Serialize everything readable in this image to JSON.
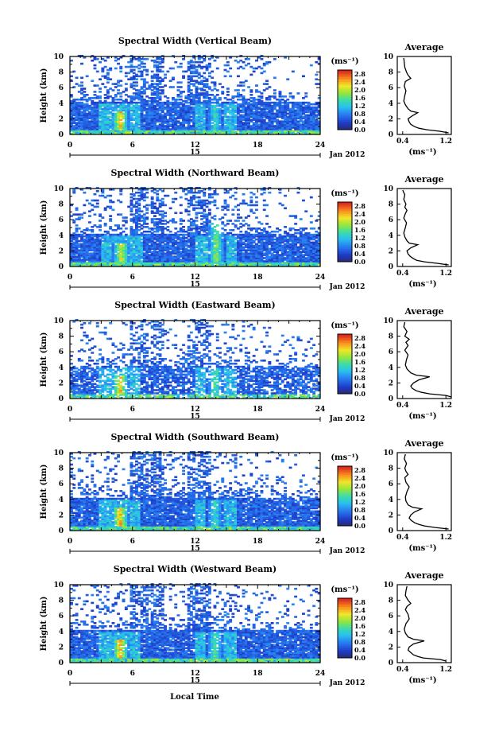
{
  "figure": {
    "xlabel": "Local Time",
    "ylabel": "Height (km)",
    "colorbar_unit": "(ms⁻¹)",
    "avg_title": "Average",
    "avg_xlabel": "(ms⁻¹)",
    "date_label": "Jan 2012",
    "day_label": "15"
  },
  "chart_data": [
    {
      "type": "heatmap",
      "title": "Spectral Width (Vertical Beam)",
      "xlabel": "Local Time",
      "ylabel": "Height (km)",
      "x_ticks": [
        "0",
        "6",
        "12",
        "18",
        "24"
      ],
      "xlim": [
        0,
        24
      ],
      "y_ticks": [
        "0",
        "2",
        "4",
        "6",
        "8",
        "10"
      ],
      "ylim": [
        0,
        10
      ],
      "colorbar": {
        "label": "(ms⁻¹)",
        "ticks": [
          "0.0",
          "0.4",
          "0.8",
          "1.2",
          "1.6",
          "2.0",
          "2.4",
          "2.8"
        ],
        "range": [
          0,
          3.0
        ]
      },
      "features": [
        {
          "time": 4.7,
          "height_range": [
            0.5,
            3.0
          ],
          "value": 2.6
        },
        {
          "time": 13.8,
          "height_range": [
            0.5,
            4.0
          ],
          "value": 1.6
        }
      ],
      "profile": {
        "title": "Average",
        "xlabel": "(ms⁻¹)",
        "x_ticks": [
          "0.4",
          "1.2"
        ],
        "xlim": [
          0.3,
          1.3
        ],
        "y_ticks": [
          "0",
          "2",
          "4",
          "6",
          "8",
          "10"
        ],
        "ylim": [
          0,
          10
        ],
        "heights": [
          0.2,
          0.4,
          0.6,
          0.8,
          1.0,
          1.3,
          1.6,
          2.0,
          2.4,
          2.8,
          3.0,
          3.3,
          3.8,
          4.3,
          5.0,
          5.6,
          6.2,
          6.8,
          7.2,
          7.6,
          8.0,
          8.6,
          9.2,
          9.8
        ],
        "values": [
          1.25,
          1.1,
          0.85,
          0.7,
          0.62,
          0.55,
          0.52,
          0.5,
          0.58,
          0.68,
          0.55,
          0.5,
          0.45,
          0.42,
          0.44,
          0.46,
          0.43,
          0.45,
          0.55,
          0.5,
          0.47,
          0.44,
          0.43,
          0.42
        ]
      }
    },
    {
      "type": "heatmap",
      "title": "Spectral Width (Northward Beam)",
      "xlabel": "Local Time",
      "ylabel": "Height (km)",
      "x_ticks": [
        "0",
        "6",
        "12",
        "18",
        "24"
      ],
      "xlim": [
        0,
        24
      ],
      "y_ticks": [
        "0",
        "2",
        "4",
        "6",
        "8",
        "10"
      ],
      "ylim": [
        0,
        10
      ],
      "colorbar": {
        "label": "(ms⁻¹)",
        "ticks": [
          "0.0",
          "0.4",
          "0.8",
          "1.2",
          "1.6",
          "2.0",
          "2.4",
          "2.8"
        ],
        "range": [
          0,
          3.0
        ]
      },
      "features": [
        {
          "time": 4.8,
          "height_range": [
            0.5,
            3.0
          ],
          "value": 2.4
        },
        {
          "time": 13.9,
          "height_range": [
            0.5,
            5.5
          ],
          "value": 2.0
        }
      ],
      "profile": {
        "title": "Average",
        "xlabel": "(ms⁻¹)",
        "x_ticks": [
          "0.4",
          "1.2"
        ],
        "xlim": [
          0.3,
          1.3
        ],
        "y_ticks": [
          "0",
          "2",
          "4",
          "6",
          "8",
          "10"
        ],
        "ylim": [
          0,
          10
        ],
        "heights": [
          0.2,
          0.4,
          0.6,
          0.8,
          1.0,
          1.3,
          1.6,
          2.0,
          2.4,
          2.8,
          3.0,
          3.3,
          3.8,
          4.3,
          5.0,
          5.6,
          6.2,
          6.8,
          7.2,
          7.6,
          8.0,
          8.6,
          9.2,
          9.8
        ],
        "values": [
          1.25,
          1.05,
          0.8,
          0.66,
          0.6,
          0.54,
          0.5,
          0.48,
          0.55,
          0.68,
          0.52,
          0.48,
          0.44,
          0.42,
          0.45,
          0.47,
          0.42,
          0.45,
          0.48,
          0.44,
          0.46,
          0.42,
          0.44,
          0.4
        ]
      }
    },
    {
      "type": "heatmap",
      "title": "Spectral Width (Eastward Beam)",
      "xlabel": "Local Time",
      "ylabel": "Height (km)",
      "x_ticks": [
        "0",
        "6",
        "12",
        "18",
        "24"
      ],
      "xlim": [
        0,
        24
      ],
      "y_ticks": [
        "0",
        "2",
        "4",
        "6",
        "8",
        "10"
      ],
      "ylim": [
        0,
        10
      ],
      "colorbar": {
        "label": "(ms⁻¹)",
        "ticks": [
          "0.0",
          "0.4",
          "0.8",
          "1.2",
          "1.6",
          "2.0",
          "2.4",
          "2.8"
        ],
        "range": [
          0,
          3.0
        ]
      },
      "features": [
        {
          "time": 4.7,
          "height_range": [
            0.5,
            3.0
          ],
          "value": 2.6
        },
        {
          "time": 13.8,
          "height_range": [
            0.5,
            4.0
          ],
          "value": 1.8
        }
      ],
      "profile": {
        "title": "Average",
        "xlabel": "(ms⁻¹)",
        "x_ticks": [
          "0.4",
          "1.2"
        ],
        "xlim": [
          0.3,
          1.3
        ],
        "y_ticks": [
          "0",
          "2",
          "4",
          "6",
          "8",
          "10"
        ],
        "ylim": [
          0,
          10
        ],
        "heights": [
          0.2,
          0.4,
          0.6,
          0.8,
          1.0,
          1.3,
          1.6,
          2.0,
          2.4,
          2.8,
          3.0,
          3.3,
          3.8,
          4.3,
          5.0,
          5.6,
          6.2,
          6.8,
          7.2,
          7.6,
          8.0,
          8.6,
          9.2,
          9.8
        ],
        "values": [
          1.3,
          1.2,
          0.9,
          0.75,
          0.65,
          0.58,
          0.55,
          0.6,
          0.7,
          0.9,
          0.65,
          0.55,
          0.48,
          0.45,
          0.47,
          0.5,
          0.44,
          0.5,
          0.46,
          0.52,
          0.44,
          0.48,
          0.42,
          0.44
        ]
      }
    },
    {
      "type": "heatmap",
      "title": "Spectral Width (Southward Beam)",
      "xlabel": "Local Time",
      "ylabel": "Height (km)",
      "x_ticks": [
        "0",
        "6",
        "12",
        "18",
        "24"
      ],
      "xlim": [
        0,
        24
      ],
      "y_ticks": [
        "0",
        "2",
        "4",
        "6",
        "8",
        "10"
      ],
      "ylim": [
        0,
        10
      ],
      "colorbar": {
        "label": "(ms⁻¹)",
        "ticks": [
          "0.0",
          "0.4",
          "0.8",
          "1.2",
          "1.6",
          "2.0",
          "2.4",
          "2.8"
        ],
        "range": [
          0,
          3.0
        ]
      },
      "features": [
        {
          "time": 4.7,
          "height_range": [
            0.5,
            3.0
          ],
          "value": 2.7
        },
        {
          "time": 13.8,
          "height_range": [
            0.5,
            4.0
          ],
          "value": 1.6
        }
      ],
      "profile": {
        "title": "Average",
        "xlabel": "(ms⁻¹)",
        "x_ticks": [
          "0.4",
          "1.2"
        ],
        "xlim": [
          0.3,
          1.3
        ],
        "y_ticks": [
          "0",
          "2",
          "4",
          "6",
          "8",
          "10"
        ],
        "ylim": [
          0,
          10
        ],
        "heights": [
          0.2,
          0.4,
          0.6,
          0.8,
          1.0,
          1.3,
          1.6,
          2.0,
          2.4,
          2.8,
          3.0,
          3.3,
          3.8,
          4.3,
          5.0,
          5.6,
          6.2,
          6.8,
          7.2,
          7.6,
          8.0,
          8.6,
          9.2,
          9.8
        ],
        "values": [
          1.25,
          1.0,
          0.8,
          0.7,
          0.62,
          0.56,
          0.52,
          0.55,
          0.62,
          0.75,
          0.58,
          0.5,
          0.46,
          0.45,
          0.48,
          0.52,
          0.46,
          0.44,
          0.5,
          0.46,
          0.44,
          0.47,
          0.43,
          0.45
        ]
      }
    },
    {
      "type": "heatmap",
      "title": "Spectral Width (Westward Beam)",
      "xlabel": "Local Time",
      "ylabel": "Height (km)",
      "x_ticks": [
        "0",
        "6",
        "12",
        "18",
        "24"
      ],
      "xlim": [
        0,
        24
      ],
      "y_ticks": [
        "0",
        "2",
        "4",
        "6",
        "8",
        "10"
      ],
      "ylim": [
        0,
        10
      ],
      "colorbar": {
        "label": "(ms⁻¹)",
        "ticks": [
          "0.0",
          "0.4",
          "0.8",
          "1.2",
          "1.6",
          "2.0",
          "2.4",
          "2.8"
        ],
        "range": [
          0,
          3.0
        ]
      },
      "features": [
        {
          "time": 4.7,
          "height_range": [
            0.5,
            3.0
          ],
          "value": 2.7
        },
        {
          "time": 13.8,
          "height_range": [
            0.5,
            4.0
          ],
          "value": 1.8
        }
      ],
      "profile": {
        "title": "Average",
        "xlabel": "(ms⁻¹)",
        "x_ticks": [
          "0.4",
          "1.2"
        ],
        "xlim": [
          0.3,
          1.3
        ],
        "y_ticks": [
          "0",
          "2",
          "4",
          "6",
          "8",
          "10"
        ],
        "ylim": [
          0,
          10
        ],
        "heights": [
          0.2,
          0.4,
          0.6,
          0.8,
          1.0,
          1.3,
          1.6,
          2.0,
          2.4,
          2.8,
          3.0,
          3.3,
          3.8,
          4.3,
          5.0,
          5.6,
          6.2,
          6.8,
          7.2,
          7.6,
          8.0,
          8.6,
          9.2,
          9.8
        ],
        "values": [
          1.2,
          1.1,
          0.78,
          0.68,
          0.6,
          0.55,
          0.5,
          0.52,
          0.6,
          0.8,
          0.6,
          0.5,
          0.45,
          0.43,
          0.46,
          0.52,
          0.5,
          0.45,
          0.48,
          0.55,
          0.5,
          0.45,
          0.46,
          0.48
        ]
      }
    }
  ]
}
